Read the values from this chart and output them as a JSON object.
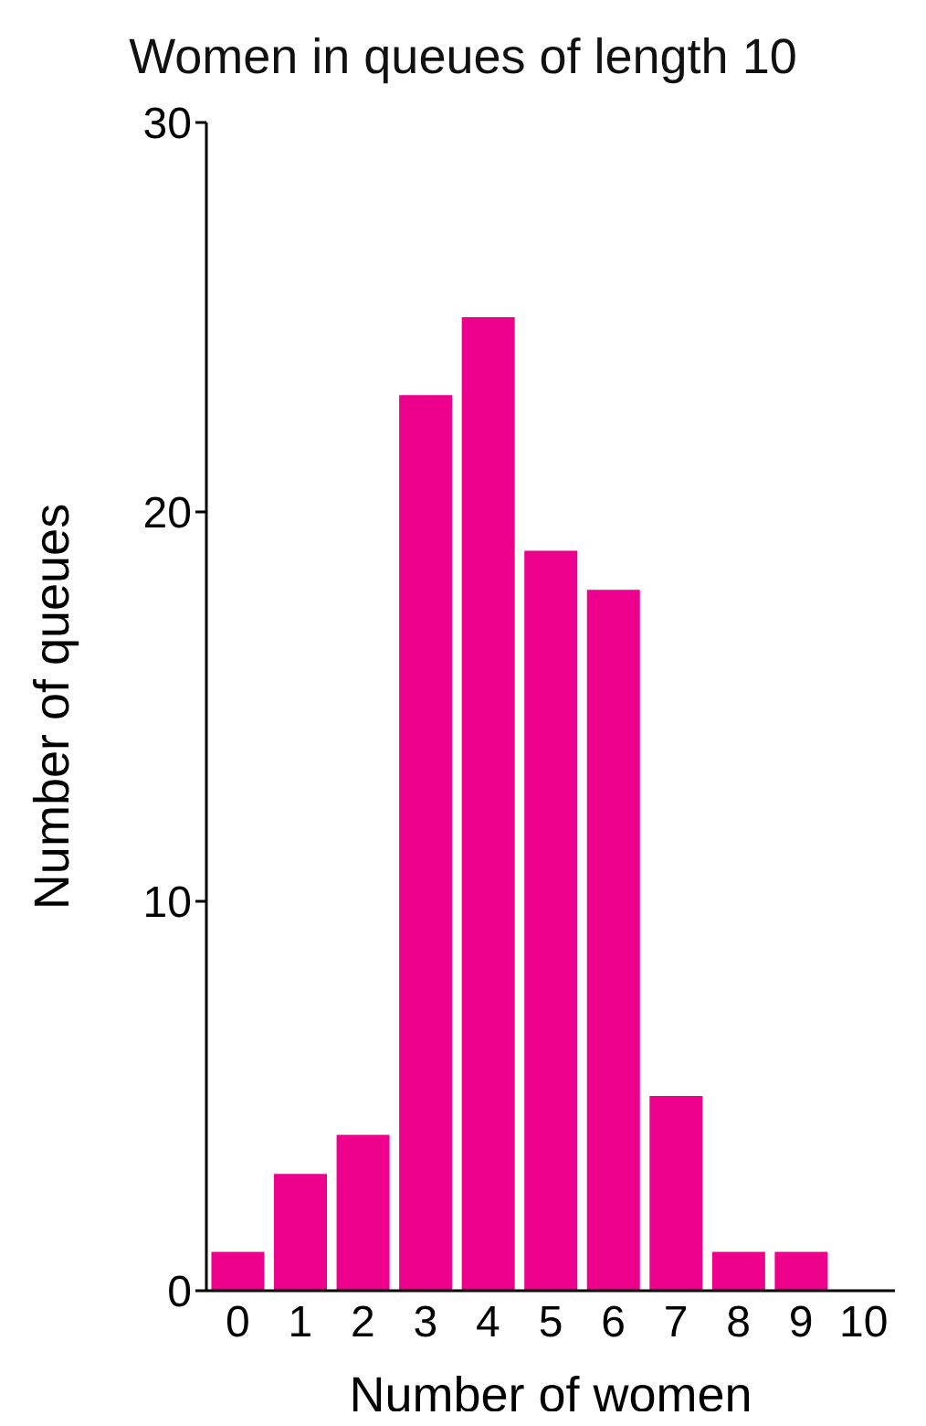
{
  "chart_data": {
    "type": "bar",
    "title": "Women in queues of length 10",
    "xlabel": "Number of women",
    "ylabel": "Number of queues",
    "categories": [
      "0",
      "1",
      "2",
      "3",
      "4",
      "5",
      "6",
      "7",
      "8",
      "9",
      "10"
    ],
    "values": [
      1,
      3,
      4,
      23,
      25,
      19,
      18,
      5,
      1,
      1,
      0
    ],
    "color": "#ec008c",
    "ylim": [
      0,
      30
    ],
    "yticks": [
      0,
      10,
      20,
      30
    ],
    "grid": false,
    "legend": false
  }
}
